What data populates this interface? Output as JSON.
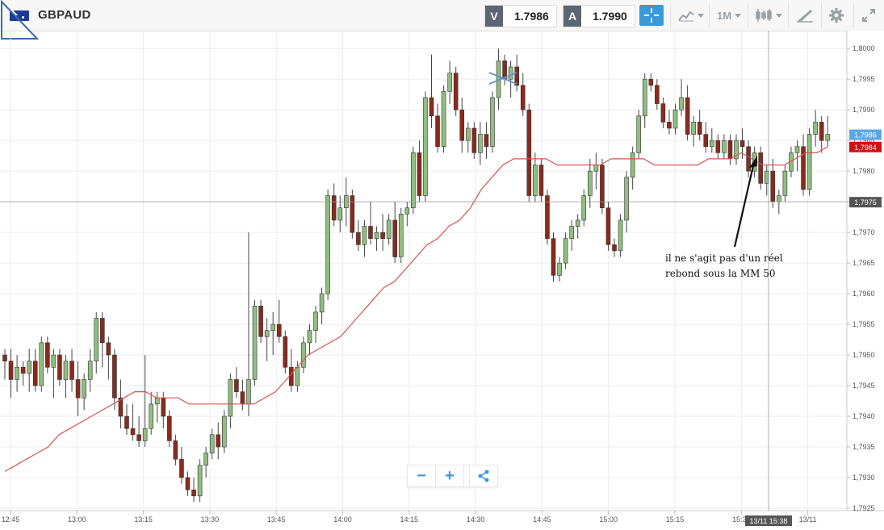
{
  "header": {
    "symbol": "GBPAUD",
    "bid_label": "V",
    "bid_value": "1.7986",
    "ask_label": "A",
    "ask_value": "1.7990",
    "timeframe": "1M",
    "icons": [
      "flag-au-icon",
      "crosshair-icon",
      "line-chart-icon",
      "candlestick-icon",
      "draw-tools-icon",
      "gear-icon",
      "expand-icon"
    ]
  },
  "annotation": {
    "line1": "il ne s'agit pas d'un réel",
    "line2": "rebond sous la MM 50"
  },
  "zoom": {
    "minus": "−",
    "plus": "+",
    "share_icon": "share-icon"
  },
  "chart_data": {
    "type": "candlestick",
    "title": "",
    "xlabel": "",
    "ylabel": "",
    "ylim": [
      1.7925,
      1.8002
    ],
    "x_ticks": [
      "12:45",
      "13:00",
      "13:15",
      "13:30",
      "13:45",
      "14:00",
      "14:15",
      "14:30",
      "14:45",
      "15:00",
      "15:15",
      "15:30",
      "13/11"
    ],
    "y_ticks": [
      "1,8000",
      "1,7995",
      "1,7990",
      "1,7985",
      "1,7980",
      "1,7975",
      "1,7970",
      "1,7965",
      "1,7960",
      "1,7955",
      "1,7950",
      "1,7945",
      "1,7940",
      "1,7935",
      "1,7930",
      "1,7925"
    ],
    "price_labels": {
      "bid": "1,7986",
      "ma": "1,7984",
      "crosshair": "1,7975",
      "crosshair_time": "13/11 15:38"
    },
    "colors": {
      "up": "#8fbf7f",
      "down": "#8b2a1c",
      "ma": "#d9534f",
      "bid_tag": "#5aa9e6",
      "ma_tag": "#cc1111",
      "cross_tag": "#555555"
    },
    "candles": [
      [
        1.795,
        1.7951,
        1.7946,
        1.7949
      ],
      [
        1.7949,
        1.7951,
        1.7943,
        1.7946
      ],
      [
        1.7946,
        1.795,
        1.7944,
        1.7948
      ],
      [
        1.7948,
        1.7949,
        1.7945,
        1.7947
      ],
      [
        1.7947,
        1.7951,
        1.7944,
        1.7949
      ],
      [
        1.7949,
        1.7951,
        1.7944,
        1.7945
      ],
      [
        1.7945,
        1.7953,
        1.7944,
        1.7952
      ],
      [
        1.7952,
        1.7953,
        1.7947,
        1.7948
      ],
      [
        1.7948,
        1.7951,
        1.7943,
        1.795
      ],
      [
        1.795,
        1.7951,
        1.7945,
        1.7946
      ],
      [
        1.7946,
        1.795,
        1.7943,
        1.7949
      ],
      [
        1.7949,
        1.7951,
        1.7944,
        1.7946
      ],
      [
        1.7946,
        1.7949,
        1.794,
        1.7943
      ],
      [
        1.7943,
        1.7947,
        1.7941,
        1.7946
      ],
      [
        1.7946,
        1.7951,
        1.7944,
        1.7949
      ],
      [
        1.7949,
        1.7957,
        1.7947,
        1.7956
      ],
      [
        1.7956,
        1.7957,
        1.7948,
        1.7952
      ],
      [
        1.7952,
        1.7953,
        1.7946,
        1.795
      ],
      [
        1.795,
        1.7951,
        1.7941,
        1.7943
      ],
      [
        1.7943,
        1.7946,
        1.7938,
        1.794
      ],
      [
        1.794,
        1.7942,
        1.7937,
        1.7938
      ],
      [
        1.7938,
        1.7942,
        1.7936,
        1.7937
      ],
      [
        1.7937,
        1.794,
        1.7935,
        1.7936
      ],
      [
        1.7936,
        1.795,
        1.7935,
        1.7938
      ],
      [
        1.7938,
        1.7944,
        1.7937,
        1.7942
      ],
      [
        1.7942,
        1.7944,
        1.7939,
        1.7943
      ],
      [
        1.7943,
        1.7944,
        1.7938,
        1.794
      ],
      [
        1.794,
        1.7941,
        1.7935,
        1.7936
      ],
      [
        1.7936,
        1.7937,
        1.7932,
        1.7933
      ],
      [
        1.7933,
        1.7935,
        1.7929,
        1.793
      ],
      [
        1.793,
        1.7931,
        1.7927,
        1.7928
      ],
      [
        1.7928,
        1.793,
        1.7926,
        1.7927
      ],
      [
        1.7927,
        1.7933,
        1.7926,
        1.7932
      ],
      [
        1.7932,
        1.7935,
        1.793,
        1.7934
      ],
      [
        1.7934,
        1.7938,
        1.7933,
        1.7937
      ],
      [
        1.7937,
        1.7939,
        1.7933,
        1.7935
      ],
      [
        1.7935,
        1.7941,
        1.7934,
        1.794
      ],
      [
        1.794,
        1.7947,
        1.7938,
        1.7946
      ],
      [
        1.7946,
        1.7948,
        1.7943,
        1.7944
      ],
      [
        1.7944,
        1.7946,
        1.7941,
        1.7942
      ],
      [
        1.7942,
        1.797,
        1.794,
        1.7946
      ],
      [
        1.7946,
        1.7959,
        1.7945,
        1.7958
      ],
      [
        1.7958,
        1.7959,
        1.7952,
        1.7953
      ],
      [
        1.7953,
        1.7956,
        1.7949,
        1.7954
      ],
      [
        1.7954,
        1.7957,
        1.795,
        1.7955
      ],
      [
        1.7955,
        1.7959,
        1.7952,
        1.7953
      ],
      [
        1.7953,
        1.7954,
        1.7947,
        1.7948
      ],
      [
        1.7948,
        1.7951,
        1.7944,
        1.7945
      ],
      [
        1.7945,
        1.7949,
        1.7944,
        1.7948
      ],
      [
        1.7948,
        1.7953,
        1.7947,
        1.7952
      ],
      [
        1.7952,
        1.7955,
        1.795,
        1.7954
      ],
      [
        1.7954,
        1.7958,
        1.7952,
        1.7957
      ],
      [
        1.7957,
        1.7961,
        1.7955,
        1.796
      ],
      [
        1.796,
        1.7977,
        1.7959,
        1.7976
      ],
      [
        1.7976,
        1.7978,
        1.7971,
        1.7972
      ],
      [
        1.7972,
        1.7976,
        1.797,
        1.7974
      ],
      [
        1.7974,
        1.7979,
        1.7971,
        1.7976
      ],
      [
        1.7976,
        1.7977,
        1.7969,
        1.797
      ],
      [
        1.797,
        1.7972,
        1.7967,
        1.7968
      ],
      [
        1.7968,
        1.7972,
        1.7966,
        1.7971
      ],
      [
        1.7971,
        1.7975,
        1.7968,
        1.7969
      ],
      [
        1.7969,
        1.7971,
        1.7967,
        1.797
      ],
      [
        1.797,
        1.7973,
        1.7967,
        1.7969
      ],
      [
        1.7969,
        1.7973,
        1.7968,
        1.7972
      ],
      [
        1.7972,
        1.7975,
        1.7965,
        1.7966
      ],
      [
        1.7966,
        1.7974,
        1.7965,
        1.7973
      ],
      [
        1.7973,
        1.7975,
        1.7971,
        1.7974
      ],
      [
        1.7974,
        1.7984,
        1.7973,
        1.7983
      ],
      [
        1.7983,
        1.7985,
        1.7975,
        1.7976
      ],
      [
        1.7976,
        1.7993,
        1.7975,
        1.7992
      ],
      [
        1.7992,
        1.7999,
        1.7987,
        1.7989
      ],
      [
        1.7989,
        1.7991,
        1.7983,
        1.7984
      ],
      [
        1.7984,
        1.7994,
        1.7983,
        1.7993
      ],
      [
        1.7993,
        1.7998,
        1.7991,
        1.7996
      ],
      [
        1.7996,
        1.7997,
        1.7989,
        1.799
      ],
      [
        1.799,
        1.7992,
        1.7983,
        1.7985
      ],
      [
        1.7985,
        1.7988,
        1.7983,
        1.7987
      ],
      [
        1.7987,
        1.7988,
        1.7982,
        1.7983
      ],
      [
        1.7983,
        1.7988,
        1.7981,
        1.7986
      ],
      [
        1.7986,
        1.7988,
        1.7982,
        1.7984
      ],
      [
        1.7984,
        1.7993,
        1.7983,
        1.7992
      ],
      [
        1.7992,
        1.8,
        1.799,
        1.7998
      ],
      [
        1.7998,
        1.7999,
        1.7994,
        1.7995
      ],
      [
        1.7995,
        1.7998,
        1.7992,
        1.7997
      ],
      [
        1.7997,
        1.7999,
        1.7993,
        1.7994
      ],
      [
        1.7994,
        1.7996,
        1.7989,
        1.799
      ],
      [
        1.799,
        1.7991,
        1.7975,
        1.7976
      ],
      [
        1.7976,
        1.7983,
        1.7975,
        1.7981
      ],
      [
        1.7981,
        1.7982,
        1.7975,
        1.7976
      ],
      [
        1.7976,
        1.7977,
        1.7968,
        1.7969
      ],
      [
        1.7969,
        1.797,
        1.7962,
        1.7963
      ],
      [
        1.7963,
        1.7966,
        1.7962,
        1.7965
      ],
      [
        1.7965,
        1.797,
        1.7964,
        1.7969
      ],
      [
        1.7969,
        1.7972,
        1.7967,
        1.7971
      ],
      [
        1.7971,
        1.7973,
        1.7969,
        1.7972
      ],
      [
        1.7972,
        1.7977,
        1.7971,
        1.7976
      ],
      [
        1.7976,
        1.7982,
        1.7974,
        1.798
      ],
      [
        1.798,
        1.7983,
        1.7977,
        1.7981
      ],
      [
        1.7981,
        1.7982,
        1.7973,
        1.7974
      ],
      [
        1.7974,
        1.7975,
        1.7967,
        1.7968
      ],
      [
        1.7968,
        1.7969,
        1.7966,
        1.7967
      ],
      [
        1.7967,
        1.7973,
        1.7966,
        1.7972
      ],
      [
        1.7972,
        1.798,
        1.797,
        1.7979
      ],
      [
        1.7979,
        1.7984,
        1.7977,
        1.7983
      ],
      [
        1.7983,
        1.799,
        1.7982,
        1.7989
      ],
      [
        1.7989,
        1.7996,
        1.7987,
        1.7995
      ],
      [
        1.7995,
        1.7996,
        1.7993,
        1.7994
      ],
      [
        1.7994,
        1.7995,
        1.799,
        1.7991
      ],
      [
        1.7991,
        1.7992,
        1.7987,
        1.7988
      ],
      [
        1.7988,
        1.799,
        1.7986,
        1.7987
      ],
      [
        1.7987,
        1.7991,
        1.7986,
        1.799
      ],
      [
        1.799,
        1.7995,
        1.7989,
        1.7992
      ],
      [
        1.7992,
        1.7994,
        1.7985,
        1.7986
      ],
      [
        1.7986,
        1.7989,
        1.7984,
        1.7988
      ],
      [
        1.7988,
        1.799,
        1.7985,
        1.7986
      ],
      [
        1.7986,
        1.7988,
        1.7983,
        1.7984
      ],
      [
        1.7984,
        1.7987,
        1.7983,
        1.7985
      ],
      [
        1.7985,
        1.7986,
        1.7982,
        1.7983
      ],
      [
        1.7983,
        1.7986,
        1.7982,
        1.7985
      ],
      [
        1.7985,
        1.7986,
        1.7981,
        1.7982
      ],
      [
        1.7982,
        1.7986,
        1.7981,
        1.7985
      ],
      [
        1.7985,
        1.7987,
        1.7982,
        1.7984
      ],
      [
        1.7984,
        1.7985,
        1.7979,
        1.798
      ],
      [
        1.798,
        1.7984,
        1.7979,
        1.7983
      ],
      [
        1.7983,
        1.7984,
        1.7977,
        1.7978
      ],
      [
        1.7978,
        1.7981,
        1.7976,
        1.798
      ],
      [
        1.798,
        1.7982,
        1.7974,
        1.7975
      ],
      [
        1.7975,
        1.7977,
        1.7973,
        1.7976
      ],
      [
        1.7976,
        1.7981,
        1.7975,
        1.798
      ],
      [
        1.798,
        1.7984,
        1.7979,
        1.7983
      ],
      [
        1.7983,
        1.7985,
        1.798,
        1.7984
      ],
      [
        1.7984,
        1.7986,
        1.7976,
        1.7977
      ],
      [
        1.7977,
        1.7987,
        1.7976,
        1.7986
      ],
      [
        1.7986,
        1.799,
        1.7984,
        1.7988
      ],
      [
        1.7988,
        1.7989,
        1.7983,
        1.7985
      ],
      [
        1.7985,
        1.7989,
        1.7984,
        1.7986
      ]
    ],
    "ma50": [
      1.7931,
      1.7932,
      1.7933,
      1.7934,
      1.7935,
      1.7937,
      1.7938,
      1.7939,
      1.794,
      1.7941,
      1.7942,
      1.7943,
      1.7944,
      1.7944,
      1.7943,
      1.7943,
      1.7943,
      1.7942,
      1.7942,
      1.7942,
      1.7942,
      1.7942,
      1.7942,
      1.7942,
      1.7943,
      1.7944,
      1.7946,
      1.7948,
      1.795,
      1.7951,
      1.7952,
      1.7953,
      1.7955,
      1.7957,
      1.7959,
      1.7961,
      1.7962,
      1.7964,
      1.7966,
      1.7968,
      1.7969,
      1.7971,
      1.7972,
      1.7974,
      1.7977,
      1.7979,
      1.7981,
      1.7982,
      1.7982,
      1.7982,
      1.7982,
      1.7981,
      1.7981,
      1.7981,
      1.7981,
      1.7981,
      1.7982,
      1.7982,
      1.7982,
      1.7982,
      1.7981,
      1.7981,
      1.7981,
      1.7981,
      1.7981,
      1.7982,
      1.7982,
      1.7982,
      1.7983,
      1.7982,
      1.7981,
      1.7981,
      1.7981,
      1.7982,
      1.7983,
      1.7983,
      1.7984
    ]
  }
}
